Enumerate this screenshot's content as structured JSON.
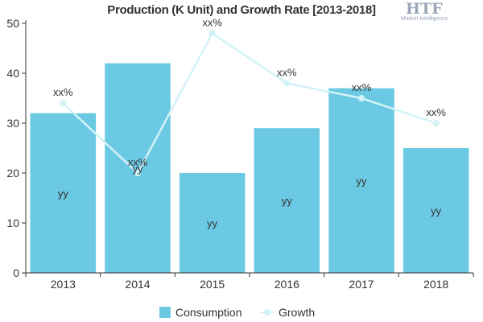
{
  "chart_data": {
    "type": "bar",
    "title": "Production (K Unit) and Growth Rate [2013-2018]",
    "categories": [
      "2013",
      "2014",
      "2015",
      "2016",
      "2017",
      "2018"
    ],
    "series": [
      {
        "name": "Consumption",
        "type": "bar",
        "values": [
          32,
          42,
          20,
          29,
          37,
          25
        ],
        "data_labels": [
          "yy",
          "yy",
          "yy",
          "yy",
          "yy",
          "yy"
        ]
      },
      {
        "name": "Growth",
        "type": "line",
        "values": [
          34,
          20,
          48,
          38,
          35,
          30
        ],
        "data_labels": [
          "xx%",
          "xx%",
          "xx%",
          "xx%",
          "xx%",
          "xx%"
        ]
      }
    ],
    "ylim": [
      0,
      50
    ],
    "yticks": [
      0,
      10,
      20,
      30,
      40,
      50
    ],
    "xlabel": "",
    "ylabel": "",
    "grid": false,
    "legend": "bottom-center"
  },
  "logo": {
    "mark": "HTF",
    "text": "Market Intelligence"
  },
  "colors": {
    "bar": "#6cc9e3",
    "line": "#d2f3f6",
    "axis": "#333333"
  }
}
